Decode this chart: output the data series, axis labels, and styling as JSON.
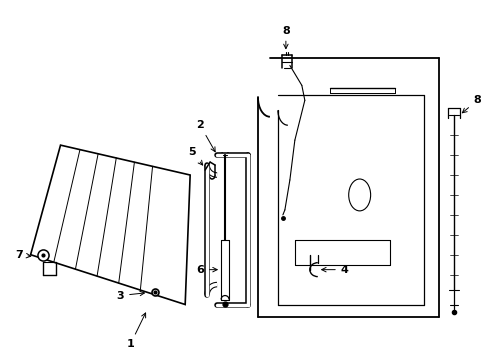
{
  "background_color": "#ffffff",
  "fig_width": 4.89,
  "fig_height": 3.6,
  "dpi": 100,
  "lw_heavy": 1.2,
  "lw_med": 0.9,
  "lw_light": 0.6
}
